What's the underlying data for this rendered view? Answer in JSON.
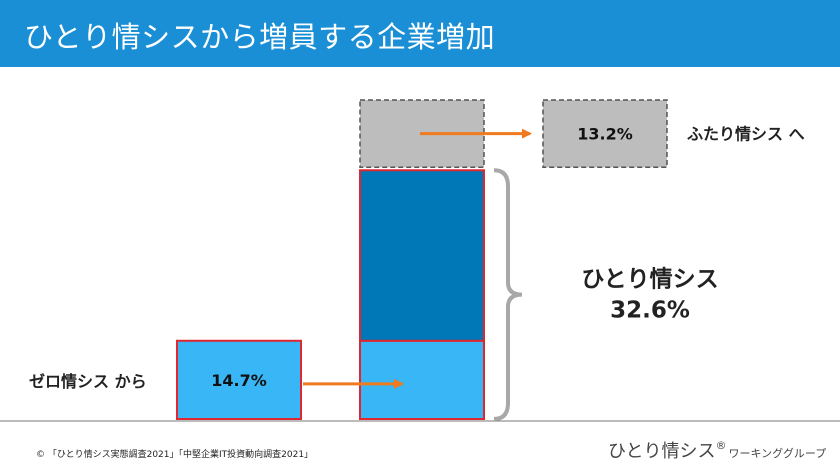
{
  "header": {
    "title": "ひとり情シスから増員する企業増加"
  },
  "chart_data": {
    "type": "bar",
    "ylim": [
      0,
      60.5
    ],
    "bars": [
      {
        "name": "left",
        "segments": [
          {
            "name": "ゼロ情シス から",
            "value": 14.7,
            "label": "14.7%",
            "color": "#38b6f5"
          }
        ]
      },
      {
        "name": "right",
        "segments": [
          {
            "name": "ゼロ情シス から",
            "value": 14.7,
            "color": "#38b6f5"
          },
          {
            "name": "ひとり情シス",
            "value": 32.6,
            "color": "#0077b6"
          },
          {
            "name": "ふたり情シス へ",
            "value": 13.2,
            "color": "#bdbdbd",
            "dashed": true
          }
        ]
      }
    ],
    "side_label": {
      "title": "ひとり情シス",
      "value": "32.6%"
    },
    "zero_label": "ゼロ情シス から",
    "futari_label": "ふたり情シス へ",
    "futari_value_label": "13.2%"
  },
  "footer": {
    "source": "©  「ひとり情シス実態調査2021」「中堅企業IT投資動向調査2021」",
    "logo_main": "ひとり情シス",
    "logo_mark": "®",
    "logo_sub": "ワーキンググループ"
  },
  "colors": {
    "header": "#1a8fd6",
    "arrow": "#f07a1e",
    "outline": "#e0262f",
    "brace": "#a8a8a8"
  }
}
